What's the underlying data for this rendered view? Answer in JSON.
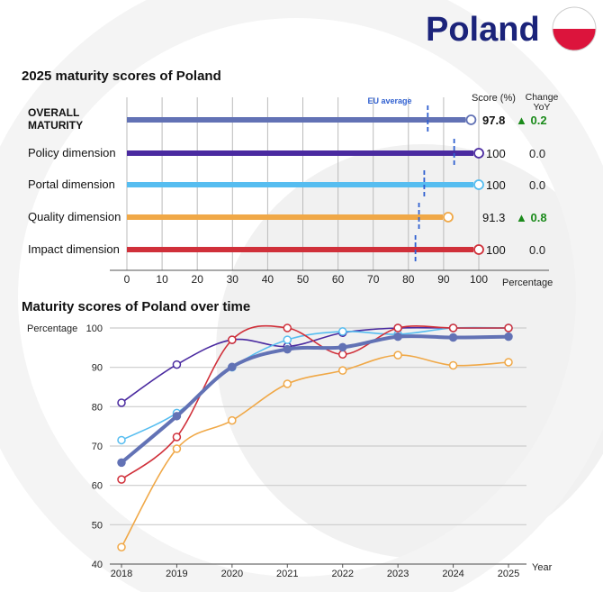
{
  "header": {
    "country": "Poland",
    "flag_colors": [
      "#ffffff",
      "#dc143c"
    ]
  },
  "chart_data": [
    {
      "type": "bar",
      "title": "2025 maturity scores of Poland",
      "xlabel": "Percentage",
      "xlim": [
        0,
        100
      ],
      "xticks": [
        "0",
        "10",
        "20",
        "30",
        "40",
        "50",
        "60",
        "70",
        "80",
        "90",
        "100"
      ],
      "eu_label": "EU average",
      "score_header": "Score (%)",
      "change_header_1": "Change",
      "change_header_2": "YoY",
      "grid": true,
      "rows": [
        {
          "label1": "OVERALL",
          "label2": "MATURITY",
          "value": 97.8,
          "score": "97.8",
          "eu": 85.5,
          "change": "▲ 0.2",
          "color": "#6272b5",
          "bold": true
        },
        {
          "label1": "Policy dimension",
          "value": 100,
          "score": "100",
          "eu": 93,
          "change": "0.0",
          "color": "#4a2aa0"
        },
        {
          "label1": "Portal dimension",
          "value": 100,
          "score": "100",
          "eu": 84.5,
          "change": "0.0",
          "color": "#56bdf0"
        },
        {
          "label1": "Quality dimension",
          "value": 91.3,
          "score": "91.3",
          "eu": 83,
          "change": "▲ 0.8",
          "color": "#f0a847"
        },
        {
          "label1": "Impact dimension",
          "value": 100,
          "score": "100",
          "eu": 82,
          "change": "0.0",
          "color": "#d0303a"
        }
      ],
      "colors": {
        "up": "#1a8a1a",
        "eu": "#3060d0"
      }
    },
    {
      "type": "line",
      "title": "Maturity scores of Poland over time",
      "ylabel": "Percentage",
      "xlabel": "Year",
      "ylim": [
        40,
        100
      ],
      "yticks": [
        "40",
        "50",
        "60",
        "70",
        "80",
        "90",
        "100"
      ],
      "x": [
        "2018",
        "2019",
        "2020",
        "2021",
        "2022",
        "2023",
        "2024",
        "2025"
      ],
      "grid": true,
      "series": [
        {
          "color": "#4a2aa0",
          "values": [
            81,
            90.7,
            97,
            95.3,
            98.8,
            100,
            100,
            100
          ]
        },
        {
          "color": "#56bdf0",
          "values": [
            71.5,
            78.4,
            90,
            97,
            99.1,
            98.4,
            100,
            100
          ]
        },
        {
          "color": "#f0a847",
          "values": [
            44.3,
            69.3,
            76.5,
            85.8,
            89.2,
            93.1,
            90.5,
            91.3
          ]
        },
        {
          "color": "#d0303a",
          "values": [
            61.5,
            72.3,
            97,
            100,
            93.3,
            100,
            100,
            100
          ]
        },
        {
          "color": "#6272b5",
          "values": [
            65.8,
            77.6,
            90.1,
            94.6,
            95.1,
            97.8,
            97.6,
            97.8
          ],
          "thick": true
        }
      ]
    }
  ]
}
